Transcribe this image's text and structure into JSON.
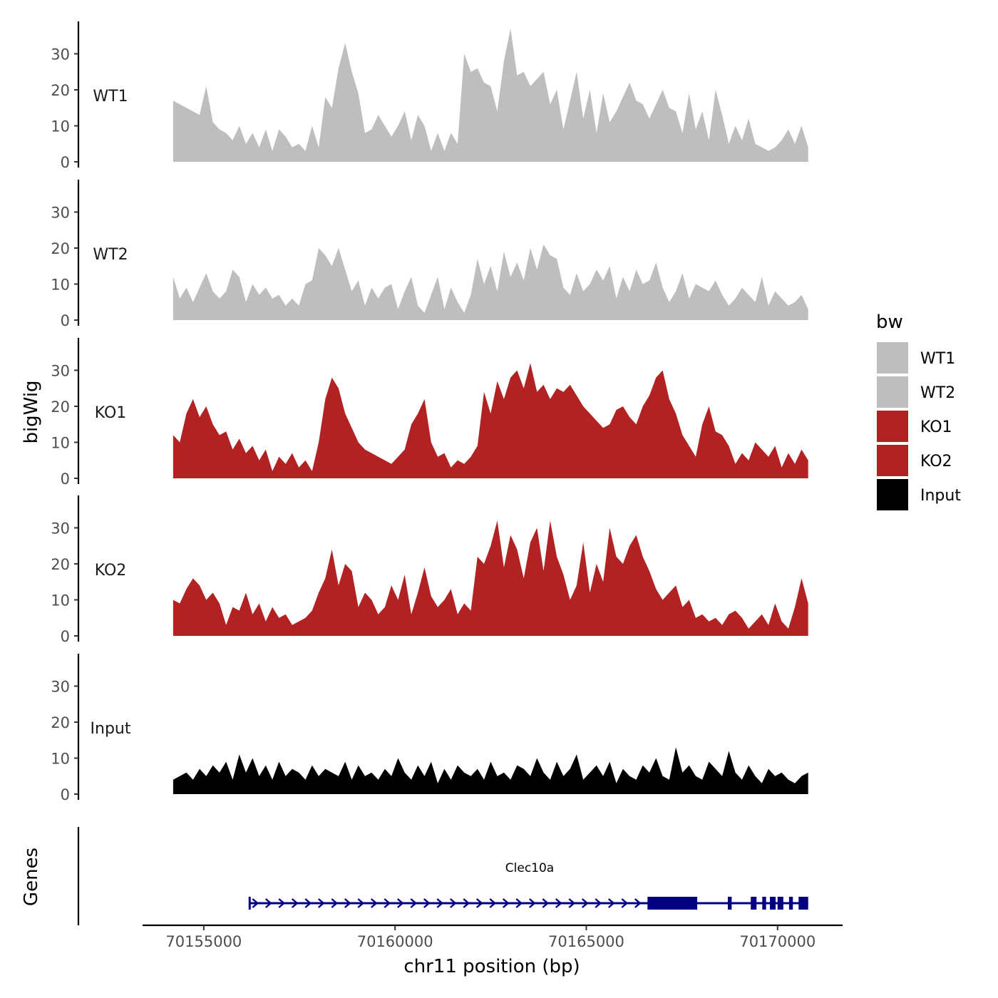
{
  "chart_data": {
    "type": "area",
    "title": "",
    "ylabel": "bigWig",
    "xlabel": "chr11 position (bp)",
    "xlim": [
      70153400,
      70171700
    ],
    "track_x_range": [
      70154200,
      70170800
    ],
    "ylim": [
      0,
      39
    ],
    "yticks": [
      0,
      10,
      20,
      30
    ],
    "xticks": [
      70155000,
      70160000,
      70165000,
      70170000
    ],
    "xtick_labels": [
      "70155000",
      "70160000",
      "70165000",
      "70170000"
    ],
    "legend": {
      "title": "bw",
      "position": "right",
      "entries": [
        {
          "label": "WT1",
          "color": "#bebebe"
        },
        {
          "label": "WT2",
          "color": "#bebebe"
        },
        {
          "label": "KO1",
          "color": "#b22222"
        },
        {
          "label": "KO2",
          "color": "#b22222"
        },
        {
          "label": "Input",
          "color": "#000000"
        }
      ]
    },
    "series": [
      {
        "name": "WT1",
        "color": "#bebebe",
        "values": [
          17,
          16,
          15,
          14,
          13,
          21,
          11,
          9,
          8,
          6,
          10,
          5,
          8,
          4,
          9,
          3,
          9,
          7,
          4,
          5,
          3,
          10,
          4,
          18,
          15,
          26,
          33,
          25,
          19,
          8,
          9,
          13,
          10,
          7,
          10,
          14,
          6,
          13,
          10,
          3,
          8,
          3,
          8,
          5,
          30,
          25,
          26,
          22,
          21,
          14,
          28,
          37,
          24,
          25,
          21,
          23,
          25,
          16,
          20,
          9,
          17,
          25,
          12,
          20,
          8,
          19,
          11,
          14,
          18,
          22,
          17,
          16,
          12,
          16,
          20,
          15,
          14,
          8,
          19,
          9,
          14,
          6,
          20,
          13,
          5,
          10,
          6,
          12,
          5,
          4,
          3,
          4,
          6,
          9,
          5,
          10,
          4
        ]
      },
      {
        "name": "WT2",
        "color": "#bebebe",
        "values": [
          12,
          6,
          9,
          5,
          9,
          13,
          8,
          6,
          8,
          14,
          12,
          5,
          10,
          7,
          9,
          6,
          7,
          4,
          6,
          4,
          10,
          11,
          20,
          18,
          15,
          20,
          14,
          8,
          11,
          4,
          9,
          6,
          9,
          10,
          3,
          8,
          12,
          4,
          2,
          7,
          12,
          3,
          9,
          5,
          2,
          7,
          17,
          10,
          15,
          8,
          19,
          12,
          16,
          11,
          20,
          14,
          21,
          18,
          17,
          9,
          7,
          13,
          8,
          10,
          14,
          11,
          15,
          6,
          12,
          8,
          14,
          10,
          11,
          16,
          9,
          5,
          8,
          13,
          6,
          10,
          9,
          8,
          11,
          7,
          4,
          6,
          9,
          7,
          5,
          12,
          4,
          8,
          6,
          4,
          5,
          7,
          3
        ]
      },
      {
        "name": "KO1",
        "color": "#b22222",
        "values": [
          12,
          10,
          18,
          22,
          17,
          20,
          15,
          12,
          13,
          8,
          11,
          7,
          9,
          5,
          8,
          2,
          6,
          4,
          7,
          3,
          5,
          2,
          10,
          22,
          28,
          25,
          18,
          14,
          10,
          8,
          7,
          6,
          5,
          4,
          6,
          8,
          15,
          18,
          22,
          10,
          6,
          7,
          3,
          5,
          4,
          6,
          9,
          24,
          18,
          27,
          22,
          28,
          30,
          25,
          32,
          24,
          26,
          22,
          25,
          24,
          26,
          23,
          20,
          18,
          16,
          14,
          15,
          19,
          20,
          17,
          15,
          20,
          23,
          28,
          30,
          22,
          18,
          12,
          9,
          6,
          15,
          20,
          13,
          12,
          9,
          4,
          7,
          5,
          10,
          8,
          6,
          9,
          3,
          7,
          4,
          8,
          5
        ]
      },
      {
        "name": "KO2",
        "color": "#b22222",
        "values": [
          10,
          9,
          13,
          16,
          14,
          10,
          12,
          9,
          3,
          8,
          7,
          12,
          6,
          9,
          4,
          8,
          5,
          6,
          3,
          4,
          5,
          7,
          12,
          16,
          24,
          14,
          20,
          18,
          8,
          12,
          10,
          6,
          8,
          14,
          10,
          17,
          6,
          12,
          19,
          11,
          8,
          10,
          13,
          6,
          9,
          7,
          22,
          20,
          25,
          32,
          19,
          28,
          24,
          16,
          26,
          30,
          18,
          32,
          22,
          17,
          10,
          14,
          26,
          12,
          20,
          15,
          30,
          22,
          20,
          25,
          28,
          22,
          18,
          13,
          10,
          12,
          14,
          8,
          10,
          5,
          6,
          4,
          5,
          3,
          6,
          7,
          5,
          2,
          4,
          6,
          3,
          9,
          4,
          2,
          8,
          16,
          9
        ]
      },
      {
        "name": "Input",
        "color": "#000000",
        "values": [
          4,
          5,
          6,
          4,
          7,
          5,
          8,
          6,
          9,
          4,
          11,
          6,
          10,
          5,
          8,
          4,
          9,
          5,
          7,
          6,
          4,
          8,
          5,
          7,
          6,
          5,
          9,
          4,
          8,
          5,
          6,
          4,
          7,
          5,
          10,
          6,
          4,
          8,
          5,
          9,
          3,
          7,
          4,
          8,
          6,
          5,
          7,
          4,
          9,
          5,
          6,
          4,
          8,
          7,
          5,
          10,
          6,
          4,
          9,
          5,
          7,
          11,
          4,
          6,
          8,
          5,
          9,
          3,
          7,
          5,
          4,
          8,
          6,
          10,
          5,
          4,
          13,
          6,
          8,
          5,
          4,
          9,
          7,
          5,
          12,
          6,
          4,
          8,
          5,
          3,
          7,
          5,
          6,
          4,
          3,
          5,
          6
        ]
      }
    ],
    "genes_track": {
      "label": "Genes",
      "gene_name": "Clec10a",
      "color": "#000080",
      "strand": "+",
      "span": [
        70156200,
        70170800
      ],
      "exons": [
        [
          70166600,
          70167900
        ],
        [
          70168700,
          70168800
        ],
        [
          70169300,
          70169450
        ],
        [
          70169600,
          70169700
        ],
        [
          70169800,
          70169950
        ],
        [
          70170000,
          70170150
        ],
        [
          70170300,
          70170400
        ],
        [
          70170550,
          70170800
        ]
      ]
    }
  }
}
